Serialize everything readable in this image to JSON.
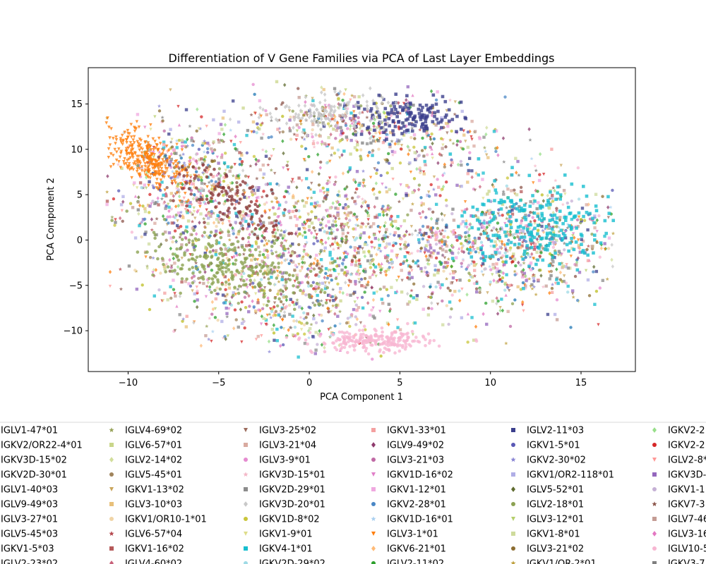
{
  "chart_data": {
    "type": "scatter",
    "title": "Differentiation of V Gene Families via PCA of Last Layer Embeddings",
    "xlabel": "PCA Component 1",
    "ylabel": "PCA Component 2",
    "xlim": [
      -12.2,
      18.0
    ],
    "ylim": [
      -14.5,
      19.0
    ],
    "xticks": [
      -10,
      -5,
      0,
      5,
      10,
      15
    ],
    "yticks": [
      -10,
      -5,
      0,
      5,
      10,
      15
    ],
    "xtick_labels": [
      "−10",
      "−5",
      "0",
      "5",
      "10",
      "15"
    ],
    "ytick_labels": [
      "−10",
      "−5",
      "0",
      "5",
      "10",
      "15"
    ],
    "grid": false,
    "legend_placement": "below plot, multi-column, clipped",
    "series": [
      {
        "label": "IGLV1-47*01",
        "marker": "circle",
        "color": "#1f77b4"
      },
      {
        "label": "IGKV2/OR22-4*01",
        "marker": "diamond",
        "color": "#2ca02c"
      },
      {
        "label": "IGKV3D-15*02",
        "marker": "square",
        "color": "#17becf"
      },
      {
        "label": "IGKV2D-30*01",
        "marker": "triangle-up",
        "color": "#e377c2"
      },
      {
        "label": "IGLV1-40*03",
        "marker": "circle",
        "color": "#8c564b"
      },
      {
        "label": "IGLV9-49*03",
        "marker": "circle",
        "color": "#bcbd22"
      },
      {
        "label": "IGLV3-27*01",
        "marker": "square",
        "color": "#9467bd"
      },
      {
        "label": "IGLV5-45*03",
        "marker": "triangle-down",
        "color": "#d62728"
      },
      {
        "label": "IGKV1-5*03",
        "marker": "star",
        "color": "#7f7f7f"
      },
      {
        "label": "IGLV2-23*02",
        "marker": "diamond",
        "color": "#ff7f0e"
      },
      {
        "label": "IGLV4-69*02",
        "marker": "star",
        "color": "#98a35a"
      },
      {
        "label": "IGLV6-57*01",
        "marker": "square",
        "color": "#c9d68a"
      },
      {
        "label": "IGLV2-14*02",
        "marker": "diamond",
        "color": "#d2de9c"
      },
      {
        "label": "IGLV5-45*01",
        "marker": "circle",
        "color": "#a0845c"
      },
      {
        "label": "IGKV1-13*02",
        "marker": "triangle-down",
        "color": "#c9a55b"
      },
      {
        "label": "IGLV3-10*03",
        "marker": "square",
        "color": "#e8c07a"
      },
      {
        "label": "IGKV1/OR10-1*01",
        "marker": "circle",
        "color": "#f0d4a6"
      },
      {
        "label": "IGLV6-57*04",
        "marker": "star",
        "color": "#b5494f"
      },
      {
        "label": "IGKV1-16*02",
        "marker": "square",
        "color": "#b55a5a"
      },
      {
        "label": "IGLV4-60*02",
        "marker": "diamond",
        "color": "#c8627a"
      },
      {
        "label": "IGLV3-25*02",
        "marker": "triangle-down",
        "color": "#9c6b5d"
      },
      {
        "label": "IGLV3-21*04",
        "marker": "square",
        "color": "#d9aaa0"
      },
      {
        "label": "IGLV3-9*01",
        "marker": "circle",
        "color": "#e58bd0"
      },
      {
        "label": "IGKV3D-15*01",
        "marker": "star",
        "color": "#f4b8c8"
      },
      {
        "label": "IGKV2D-29*01",
        "marker": "square",
        "color": "#8c8c8c"
      },
      {
        "label": "IGKV3D-20*01",
        "marker": "diamond",
        "color": "#c8c8c8"
      },
      {
        "label": "IGKV1D-8*02",
        "marker": "circle",
        "color": "#c9c53a"
      },
      {
        "label": "IGKV1-9*01",
        "marker": "triangle-down",
        "color": "#dedd8a"
      },
      {
        "label": "IGKV4-1*01",
        "marker": "square",
        "color": "#17becf"
      },
      {
        "label": "IGKV2D-29*02",
        "marker": "circle",
        "color": "#9edae5"
      },
      {
        "label": "IGKV1-33*01",
        "marker": "square",
        "color": "#f4a0a0"
      },
      {
        "label": "IGLV9-49*02",
        "marker": "diamond",
        "color": "#8e3b6d"
      },
      {
        "label": "IGLV3-21*03",
        "marker": "circle",
        "color": "#c06aa5"
      },
      {
        "label": "IGKV1D-16*02",
        "marker": "triangle-down",
        "color": "#e07fc8"
      },
      {
        "label": "IGKV1-12*01",
        "marker": "square",
        "color": "#f0a8e0"
      },
      {
        "label": "IGKV2-28*01",
        "marker": "circle",
        "color": "#4a87c5"
      },
      {
        "label": "IGKV1D-16*01",
        "marker": "star",
        "color": "#aad0f0"
      },
      {
        "label": "IGLV3-1*01",
        "marker": "triangle-down",
        "color": "#ff7f0e"
      },
      {
        "label": "IGKV6-21*01",
        "marker": "diamond",
        "color": "#ffbb78"
      },
      {
        "label": "IGLV2-11*02",
        "marker": "circle",
        "color": "#2ca02c"
      },
      {
        "label": "IGLV2-11*03",
        "marker": "square",
        "color": "#3b3f8c"
      },
      {
        "label": "IGKV1-5*01",
        "marker": "circle",
        "color": "#5a59b5"
      },
      {
        "label": "IGKV2-30*02",
        "marker": "star",
        "color": "#8a86d4"
      },
      {
        "label": "IGKV1/OR2-118*01",
        "marker": "square",
        "color": "#b0aee6"
      },
      {
        "label": "IGLV5-52*01",
        "marker": "diamond",
        "color": "#5f6b2f"
      },
      {
        "label": "IGLV2-18*01",
        "marker": "circle",
        "color": "#8ca252"
      },
      {
        "label": "IGLV3-12*01",
        "marker": "triangle-down",
        "color": "#b5cf6b"
      },
      {
        "label": "IGKV1-8*01",
        "marker": "square",
        "color": "#cedb9c"
      },
      {
        "label": "IGLV3-21*02",
        "marker": "circle",
        "color": "#8c6d31"
      },
      {
        "label": "IGKV1/OR-2*01",
        "marker": "star",
        "color": "#bd9e39"
      },
      {
        "label": "IGKV2-2",
        "marker": "diamond",
        "color": "#98df8a"
      },
      {
        "label": "IGKV2-2",
        "marker": "circle",
        "color": "#d62728"
      },
      {
        "label": "IGLV2-8*",
        "marker": "triangle-down",
        "color": "#ff9896"
      },
      {
        "label": "IGKV3D-",
        "marker": "square",
        "color": "#9467bd"
      },
      {
        "label": "IGKV1-1",
        "marker": "circle",
        "color": "#c5b0d5"
      },
      {
        "label": "IGKV7-3",
        "marker": "star",
        "color": "#8c564b"
      },
      {
        "label": "IGLV7-46",
        "marker": "square",
        "color": "#c49c94"
      },
      {
        "label": "IGLV3-16",
        "marker": "diamond",
        "color": "#e377c2"
      },
      {
        "label": "IGLV10-5",
        "marker": "circle",
        "color": "#f7b6d2"
      },
      {
        "label": "IGKV3-7",
        "marker": "square",
        "color": "#7f7f7f"
      }
    ]
  }
}
